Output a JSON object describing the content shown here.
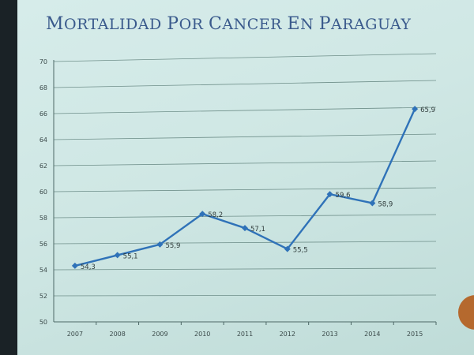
{
  "title": "Mortalidad por cancer en Paraguay",
  "chart_data": {
    "type": "line",
    "title": "Mortalidad por cancer en Paraguay",
    "xlabel": "",
    "ylabel": "",
    "categories": [
      "2007",
      "2008",
      "2009",
      "2010",
      "2011",
      "2012",
      "2013",
      "2014",
      "2015"
    ],
    "series": [
      {
        "values": [
          54.3,
          55.1,
          55.9,
          58.2,
          57.1,
          55.5,
          59.6,
          58.9,
          65.9
        ]
      }
    ],
    "data_labels": [
      "54,3",
      "55,1",
      "55,9",
      "58,2",
      "57,1",
      "55,5",
      "59,6",
      "58,9",
      "65,9"
    ],
    "ylim": [
      50,
      70
    ],
    "yticks": [
      50,
      52,
      54,
      56,
      58,
      60,
      62,
      64,
      66,
      68,
      70
    ],
    "grid": true,
    "legend": "none",
    "line_color": "#2f72b8",
    "grid_color": "#6f8f8a"
  }
}
